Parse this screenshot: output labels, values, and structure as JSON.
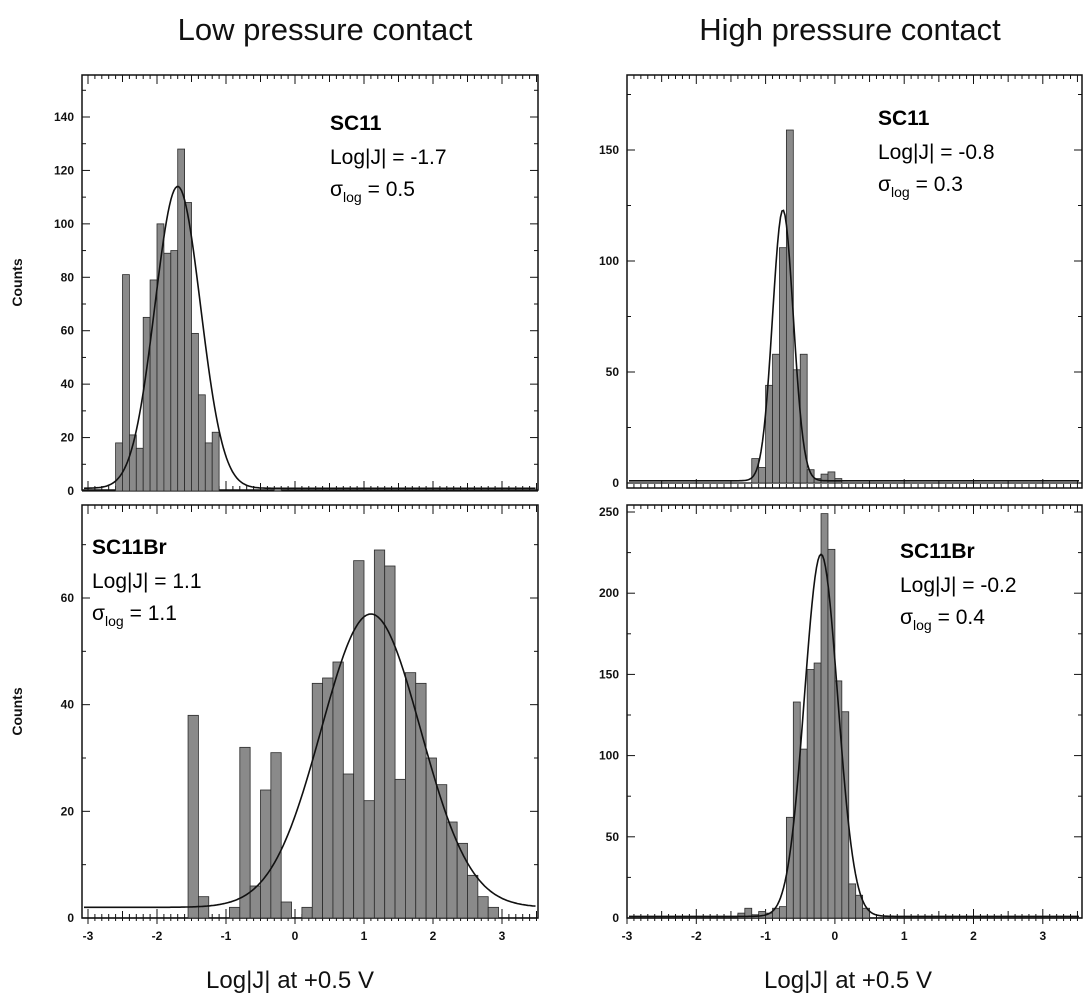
{
  "column_titles": [
    "Low pressure contact",
    "High pressure contact"
  ],
  "x_axis_title": "Log|J| at +0.5 V",
  "chart_data": [
    {
      "type": "bar",
      "sample": "SC11",
      "loglabel": "Log|J| = -1.7",
      "sigma_value": "= 0.5",
      "ylabel": "Counts",
      "xlim": [
        -3.0,
        3.5
      ],
      "ylim": [
        -5,
        150
      ],
      "yticks": [
        0,
        20,
        40,
        60,
        80,
        100,
        120,
        140
      ],
      "bin_width": 0.1,
      "bar_lefts": [
        -2.6,
        -2.5,
        -2.4,
        -2.3,
        -2.2,
        -2.1,
        -2.0,
        -1.9,
        -1.8,
        -1.7,
        -1.6,
        -1.5,
        -1.4,
        -1.3,
        -1.2,
        -1.1,
        -1.0,
        -0.3
      ],
      "values": [
        18,
        81,
        21,
        16,
        65,
        79,
        100,
        89,
        90,
        128,
        108,
        59,
        36,
        18,
        22,
        0,
        0,
        1
      ],
      "fit": {
        "mean": -1.7,
        "sigma": 0.33,
        "amplitude": 113,
        "baseline": 1
      },
      "show_xticklabels": false
    },
    {
      "type": "bar",
      "sample": "SC11",
      "loglabel": "Log|J| = -0.8",
      "sigma_value": "= 0.3",
      "ylabel": "",
      "xlim": [
        -3.0,
        3.5
      ],
      "ylim": [
        -3,
        180
      ],
      "yticks": [
        0,
        50,
        100,
        150
      ],
      "bin_width": 0.1,
      "bar_lefts": [
        -1.2,
        -1.1,
        -1.0,
        -0.9,
        -0.8,
        -0.7,
        -0.6,
        -0.5,
        -0.4,
        -0.3,
        -0.2,
        -0.1,
        0.0
      ],
      "values": [
        11,
        7,
        44,
        58,
        106,
        159,
        51,
        58,
        6,
        2,
        4,
        5,
        2
      ],
      "fit": {
        "mean": -0.75,
        "sigma": 0.15,
        "amplitude": 122,
        "baseline": 1
      },
      "show_xticklabels": false
    },
    {
      "type": "bar",
      "sample": "SC11Br",
      "loglabel": "Log|J| = 1.1",
      "sigma_value": "= 1.1",
      "ylabel": "Counts",
      "xlim": [
        -3.0,
        3.5
      ],
      "ylim": [
        -1,
        80
      ],
      "yticks": [
        0,
        20,
        40,
        60
      ],
      "xticks": [
        -3,
        -2,
        -1,
        0,
        1,
        2,
        3
      ],
      "bin_width": 0.15,
      "bar_lefts": [
        -1.55,
        -1.4,
        -0.95,
        -0.8,
        -0.65,
        -0.5,
        -0.35,
        -0.2,
        0.1,
        0.25,
        0.4,
        0.55,
        0.7,
        0.85,
        1.0,
        1.15,
        1.3,
        1.45,
        1.6,
        1.75,
        1.9,
        2.05,
        2.2,
        2.35,
        2.5,
        2.65,
        2.8
      ],
      "values": [
        38,
        4,
        2,
        32,
        6,
        24,
        31,
        3,
        2,
        44,
        45,
        48,
        27,
        67,
        22,
        69,
        66,
        26,
        46,
        44,
        30,
        25,
        18,
        14,
        8,
        4,
        2
      ],
      "fit": {
        "mean": 1.1,
        "sigma": 0.72,
        "amplitude": 55,
        "baseline": 2
      },
      "show_xticklabels": true
    },
    {
      "type": "bar",
      "sample": "SC11Br",
      "loglabel": "Log|J| = -0.2",
      "sigma_value": "= 0.4",
      "ylabel": "",
      "xlim": [
        -3.0,
        3.5
      ],
      "ylim": [
        -3,
        255
      ],
      "yticks": [
        0,
        50,
        100,
        150,
        200,
        250
      ],
      "xticks": [
        -3,
        -2,
        -1,
        0,
        1,
        2,
        3
      ],
      "bin_width": 0.1,
      "bar_lefts": [
        -1.4,
        -1.3,
        -1.2,
        -1.1,
        -1.0,
        -0.9,
        -0.8,
        -0.7,
        -0.6,
        -0.5,
        -0.4,
        -0.3,
        -0.2,
        -0.1,
        0.0,
        0.1,
        0.2,
        0.3,
        0.4
      ],
      "values": [
        3,
        6,
        2,
        4,
        3,
        6,
        7,
        62,
        133,
        104,
        153,
        157,
        249,
        227,
        146,
        127,
        21,
        14,
        6
      ],
      "fit": {
        "mean": -0.2,
        "sigma": 0.24,
        "amplitude": 223,
        "baseline": 1
      },
      "show_xticklabels": true
    }
  ]
}
